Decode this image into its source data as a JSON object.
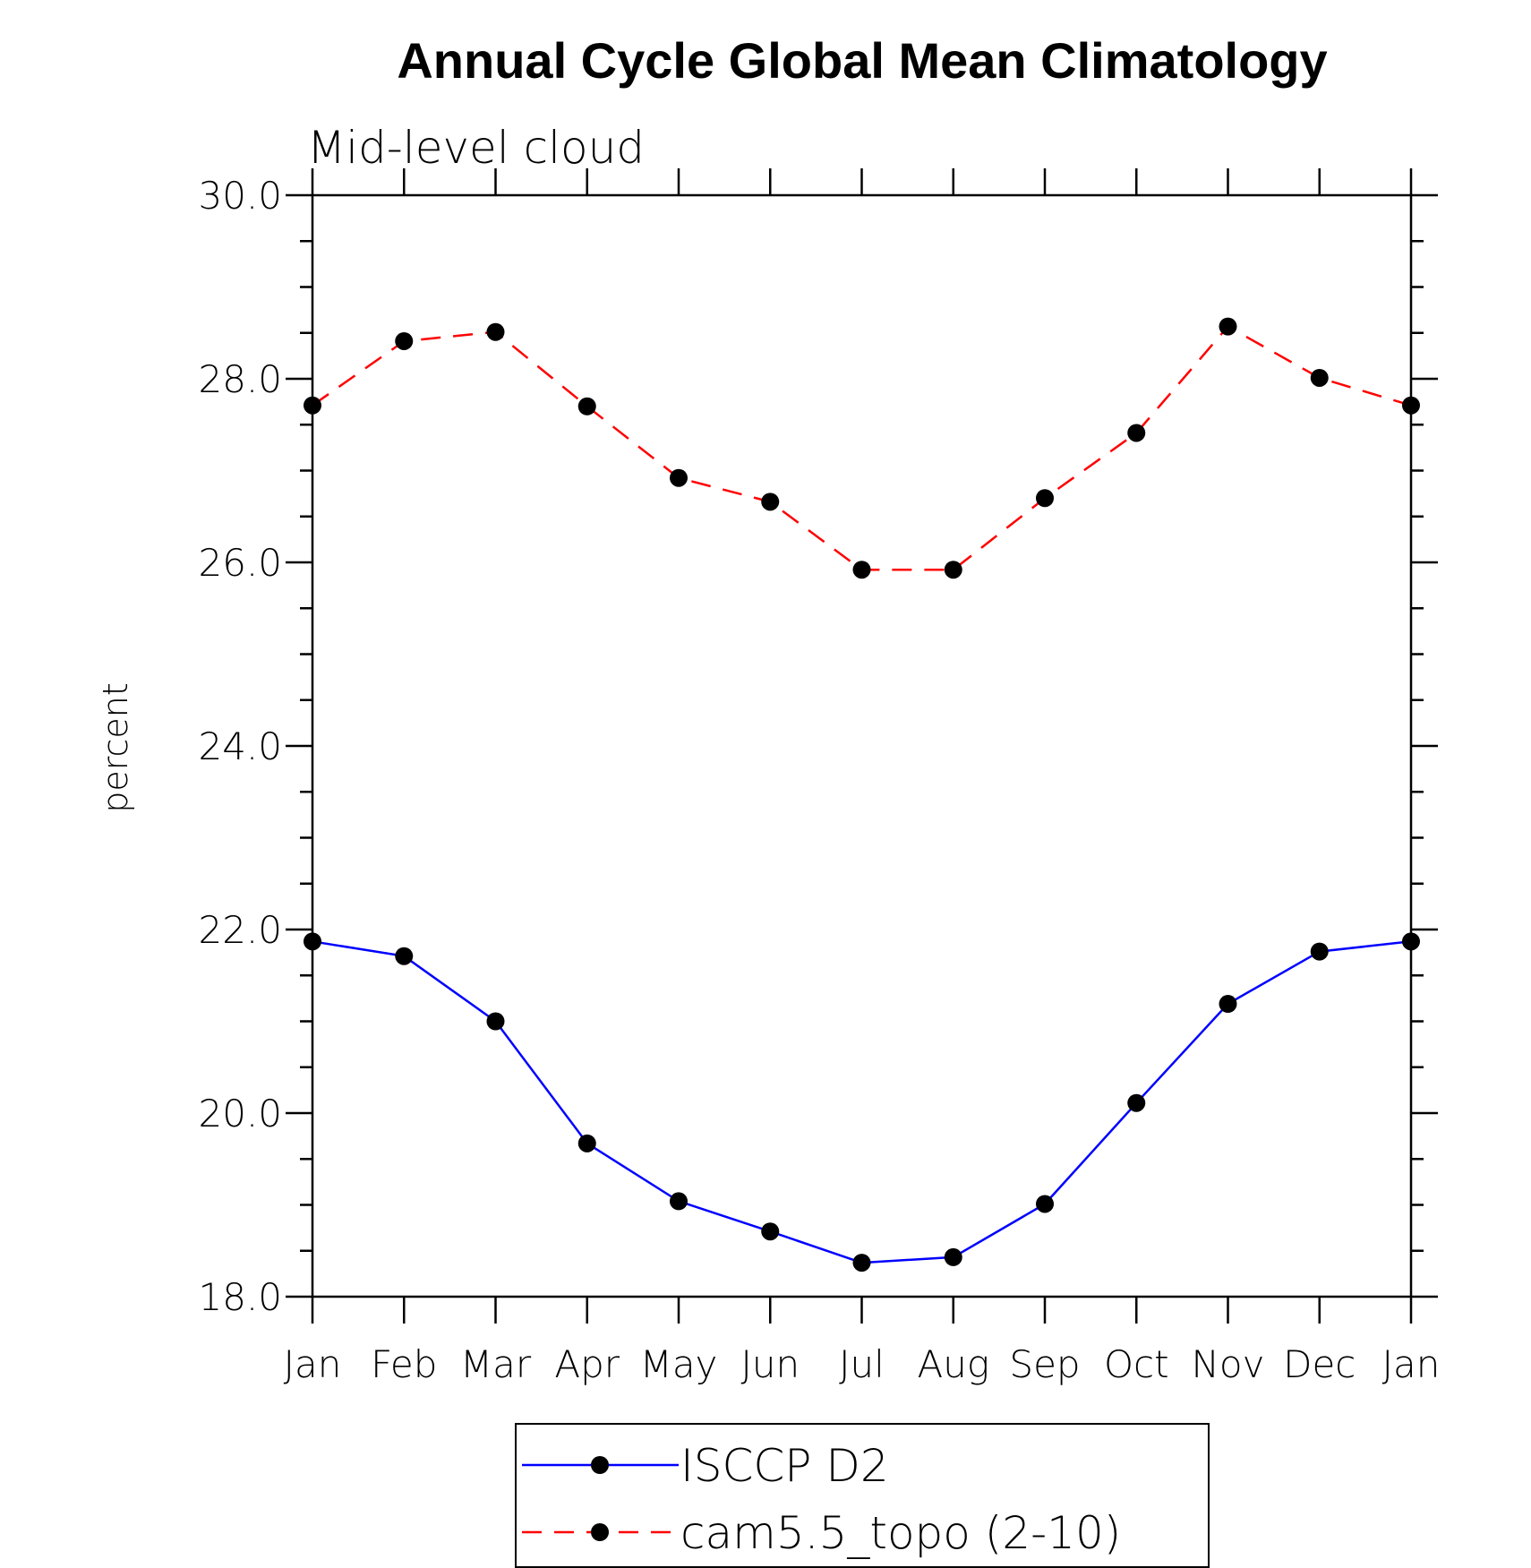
{
  "chart_data": {
    "type": "line",
    "title": "Annual Cycle Global Mean Climatology",
    "subtitle": "Mid-level cloud",
    "xlabel": "",
    "ylabel": "percent",
    "categories": [
      "Jan",
      "Feb",
      "Mar",
      "Apr",
      "May",
      "Jun",
      "Jul",
      "Aug",
      "Sep",
      "Oct",
      "Nov",
      "Dec",
      "Jan"
    ],
    "ylim": [
      18.0,
      30.0
    ],
    "yticks": [
      "18.0",
      "20.0",
      "22.0",
      "24.0",
      "26.0",
      "28.0",
      "30.0"
    ],
    "series": [
      {
        "name": "ISCCP D2",
        "color": "#0000ff",
        "dash": "solid",
        "values": [
          21.87,
          21.71,
          21.0,
          19.67,
          19.04,
          18.71,
          18.37,
          18.43,
          19.01,
          20.11,
          21.19,
          21.76,
          21.87
        ]
      },
      {
        "name": "cam5.5_topo (2-10)",
        "color": "#ff0000",
        "dash": "dashed",
        "values": [
          27.71,
          28.41,
          28.51,
          27.7,
          26.92,
          26.66,
          25.92,
          25.92,
          26.7,
          27.41,
          28.57,
          28.01,
          27.71
        ]
      }
    ],
    "legend": {
      "position": "bottom-center"
    },
    "marker_color": "#000000",
    "grid": false
  }
}
